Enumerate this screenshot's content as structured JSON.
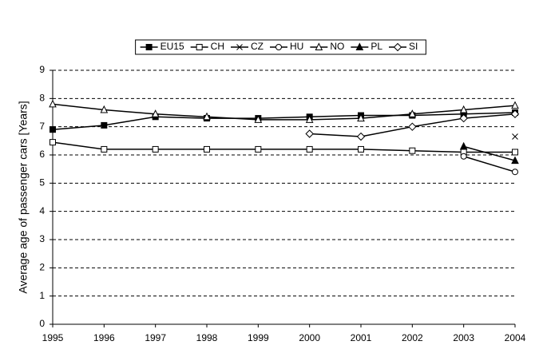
{
  "chart_data": {
    "type": "line",
    "y_label": "Average age of passenger cars [Years]",
    "categories": [
      "1995",
      "1996",
      "1997",
      "1998",
      "1999",
      "2000",
      "2001",
      "2002",
      "2003",
      "2004"
    ],
    "ylim": [
      0,
      9
    ],
    "yticks": [
      0,
      1,
      2,
      3,
      4,
      5,
      6,
      7,
      8,
      9
    ],
    "grid": true,
    "legend": "top",
    "series": [
      {
        "name": "EU15",
        "color": "#000000",
        "marker": "square-filled",
        "values": [
          6.9,
          7.05,
          7.35,
          7.3,
          7.3,
          7.35,
          7.4,
          7.4,
          7.45,
          7.5
        ]
      },
      {
        "name": "CH",
        "color": "#000000",
        "marker": "square-open",
        "values": [
          6.45,
          6.2,
          6.2,
          6.2,
          6.2,
          6.2,
          6.2,
          6.15,
          6.1,
          6.1
        ]
      },
      {
        "name": "CZ",
        "color": "#000000",
        "marker": "cross",
        "values": [
          null,
          null,
          null,
          null,
          null,
          null,
          null,
          null,
          null,
          6.65
        ]
      },
      {
        "name": "HU",
        "color": "#000000",
        "marker": "circle-open",
        "values": [
          null,
          null,
          null,
          null,
          null,
          null,
          null,
          null,
          5.95,
          5.4
        ]
      },
      {
        "name": "NO",
        "color": "#000000",
        "marker": "triangle-open",
        "values": [
          7.8,
          7.6,
          7.45,
          7.35,
          7.25,
          7.25,
          7.3,
          7.45,
          7.6,
          7.75
        ]
      },
      {
        "name": "PL",
        "color": "#000000",
        "marker": "triangle-filled",
        "values": [
          null,
          null,
          null,
          null,
          null,
          null,
          null,
          null,
          6.3,
          5.8
        ]
      },
      {
        "name": "SI",
        "color": "#000000",
        "marker": "diamond-open",
        "values": [
          null,
          null,
          null,
          null,
          null,
          6.75,
          6.65,
          7.0,
          7.3,
          7.45
        ]
      }
    ]
  }
}
